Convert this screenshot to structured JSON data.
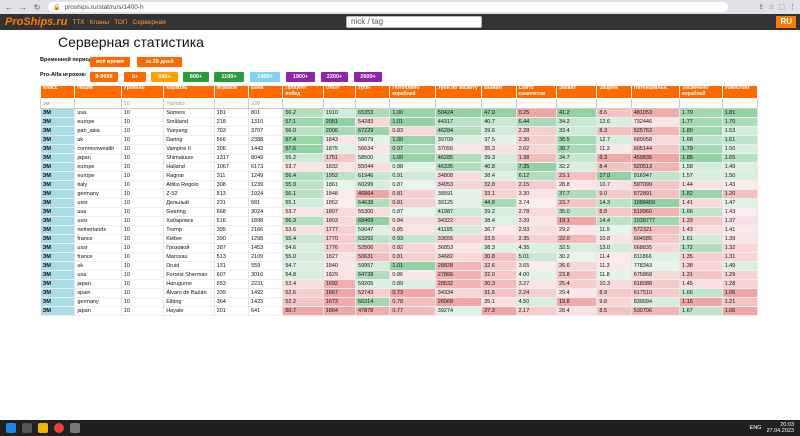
{
  "browser": {
    "url": "proships.ru/stat/ru/s/1400-h"
  },
  "header": {
    "logo": "ProShips.ru",
    "links": [
      "ТТХ",
      "Кланы",
      "ТОП",
      "Серверная"
    ],
    "search_placeholder": "nick / tag",
    "lang": "RU"
  },
  "page": {
    "title": "Серверная статистика",
    "period_label": "Временной период:",
    "period_opts": [
      "всё время",
      "за 28 дней"
    ],
    "pro_label": "Pro-Alfa игроков:",
    "pro_opts": [
      "0-9999",
      "0+",
      "500+",
      "800+",
      "1100+",
      "1400+",
      "1900+",
      "2200+",
      "2600+"
    ]
  },
  "colors": {
    "pill_bg": [
      "#ff6a00",
      "#ff6a00",
      "#ff6a00",
      "#ff9f00",
      "#2d9b3a",
      "#2d9b3a",
      "#7fd3ee",
      "#8e24aa",
      "#8e24aa",
      "#8e24aa"
    ]
  },
  "table": {
    "headers": [
      "Класс",
      "Нация",
      "Уровень",
      "Корабль",
      "Игроков",
      "Боев",
      "Процент побед",
      "Опыт",
      "Урон",
      "Потоплено кораблей",
      "Урон по засвету",
      "Выжил",
      "Сбито самолетов",
      "Захват",
      "Защита",
      "Потенциальн.",
      "Засвечено кораблей",
      "Убил/Убит"
    ],
    "filters": [
      "эм",
      "",
      "10",
      "Yamato",
      "",
      "≥20",
      "",
      "",
      "",
      "",
      "",
      "",
      "",
      "",
      "",
      "",
      "",
      ""
    ],
    "rows": [
      [
        "ЭМ",
        "usa",
        "10",
        "Somers",
        "181",
        "801",
        "56.2",
        "1910",
        "65353",
        "1.00",
        "50424",
        "47.0",
        "0.25",
        "41.2",
        "8.6",
        "481053",
        "1.79",
        "1.81"
      ],
      [
        "ЭМ",
        "europe",
        "10",
        "Småland",
        "218",
        "1310",
        "57.1",
        "2051",
        "54283",
        "1.01",
        "44317",
        "40.7",
        "6.44",
        "34.2",
        "12.6",
        "732446",
        "1.77",
        "1.70"
      ],
      [
        "ЭМ",
        "pan_asia",
        "10",
        "Yueyang",
        "703",
        "3707",
        "56.0",
        "2006",
        "67229",
        "0.83",
        "46284",
        "39.6",
        "2.28",
        "33.4",
        "8.3",
        "525763",
        "1.80",
        "1.53"
      ],
      [
        "ЭМ",
        "uk",
        "10",
        "Daring",
        "566",
        "2388",
        "57.4",
        "1843",
        "58079",
        "1.00",
        "39709",
        "37.5",
        "2.30",
        "38.5",
        "12.7",
        "689058",
        "1.68",
        "1.61"
      ],
      [
        "ЭМ",
        "commonwealth",
        "10",
        "Vampire II",
        "306",
        "1443",
        "57.6",
        "1875",
        "56634",
        "0.97",
        "37056",
        "35.3",
        "2.62",
        "38.7",
        "11.3",
        "605144",
        "1.79",
        "1.50"
      ],
      [
        "ЭМ",
        "japan",
        "10",
        "Shimakaze",
        "1317",
        "8049",
        "55.2",
        "1751",
        "58500",
        "1.00",
        "46285",
        "39.3",
        "1.38",
        "34.7",
        "6.3",
        "459835",
        "1.85",
        "1.65"
      ],
      [
        "ЭМ",
        "europe",
        "10",
        "Halland",
        "1067",
        "6173",
        "53.7",
        "1832",
        "55044",
        "0.88",
        "46335",
        "40.8",
        "7.35",
        "32.2",
        "8.4",
        "520513",
        "1.58",
        "1.49"
      ],
      [
        "ЭМ",
        "europe",
        "10",
        "Ragnar",
        "311",
        "1249",
        "56.4",
        "1952",
        "61946",
        "0.91",
        "34808",
        "38.4",
        "6.12",
        "23.1",
        "17.0",
        "916947",
        "1.57",
        "1.50"
      ],
      [
        "ЭМ",
        "italy",
        "10",
        "Attilio Regolo",
        "308",
        "1239",
        "55.9",
        "1861",
        "60299",
        "0.87",
        "34053",
        "32.8",
        "2.15",
        "28.8",
        "10.7",
        "597099",
        "1.44",
        "1.43"
      ],
      [
        "ЭМ",
        "germany",
        "10",
        "Z-52",
        "513",
        "1924",
        "56.1",
        "1848",
        "46864",
        "0.81",
        "38591",
        "33.1",
        "3.30",
        "37.7",
        "9.0",
        "572891",
        "1.82",
        "1.20"
      ],
      [
        "ЭМ",
        "ussr",
        "10",
        "Дельный",
        "231",
        "681",
        "55.1",
        "1852",
        "64638",
        "0.81",
        "39125",
        "44.8",
        "3.74",
        "23.7",
        "14.3",
        "1088459",
        "1.41",
        "1.47"
      ],
      [
        "ЭМ",
        "usa",
        "10",
        "Gearing",
        "668",
        "3024",
        "53.7",
        "1807",
        "55300",
        "0.87",
        "41987",
        "39.2",
        "2.78",
        "35.0",
        "8.8",
        "519960",
        "1.66",
        "1.43"
      ],
      [
        "ЭМ",
        "ussr",
        "10",
        "Хабаровск",
        "516",
        "1898",
        "56.3",
        "1803",
        "68469",
        "0.84",
        "34322",
        "38.4",
        "3.39",
        "19.1",
        "14.4",
        "1038777",
        "1.33",
        "1.37"
      ],
      [
        "ЭМ",
        "netherlands",
        "10",
        "Tromp",
        "395",
        "2166",
        "53.6",
        "1777",
        "59047",
        "0.85",
        "41195",
        "36.7",
        "2.93",
        "29.2",
        "11.9",
        "572321",
        "1.43",
        "1.41"
      ],
      [
        "ЭМ",
        "france",
        "10",
        "Kléber",
        "390",
        "1298",
        "55.4",
        "1770",
        "63292",
        "0.93",
        "33655",
        "33.5",
        "2.35",
        "22.0",
        "10.8",
        "604585",
        "1.61",
        "1.39"
      ],
      [
        "ЭМ",
        "ussr",
        "10",
        "Грозовой",
        "387",
        "1453",
        "54.6",
        "1776",
        "52506",
        "0.82",
        "36853",
        "38.3",
        "4.35",
        "32.5",
        "13.0",
        "668835",
        "1.72",
        "1.32"
      ],
      [
        "ЭМ",
        "france",
        "10",
        "Marceau",
        "513",
        "2109",
        "55.0",
        "1827",
        "50631",
        "0.81",
        "34682",
        "30.8",
        "5.01",
        "30.2",
        "11.4",
        "811866",
        "1.35",
        "1.31"
      ],
      [
        "ЭМ",
        "uk",
        "10",
        "Druid",
        "131",
        "559",
        "54.7",
        "1840",
        "59957",
        "1.01",
        "28828",
        "32.6",
        "3.65",
        "26.6",
        "11.3",
        "778343",
        "1.38",
        "1.49"
      ],
      [
        "ЭМ",
        "usa",
        "10",
        "Forrest Sherman",
        "607",
        "3016",
        "54.8",
        "1829",
        "64728",
        "0.86",
        "27866",
        "32.0",
        "4.00",
        "23.8",
        "11.8",
        "675868",
        "1.31",
        "1.29"
      ],
      [
        "ЭМ",
        "japan",
        "10",
        "Harugumo",
        "653",
        "2231",
        "53.4",
        "1692",
        "59205",
        "0.89",
        "28532",
        "30.3",
        "3.27",
        "25.4",
        "10.3",
        "618088",
        "1.45",
        "1.28"
      ],
      [
        "ЭМ",
        "spain",
        "10",
        "Álvaro de Bazán",
        "339",
        "1492",
        "52.6",
        "1667",
        "52743",
        "0.73",
        "34334",
        "31.5",
        "2.24",
        "29.4",
        "8.9",
        "617510",
        "1.66",
        "1.06"
      ],
      [
        "ЭМ",
        "germany",
        "10",
        "Elbing",
        "364",
        "1423",
        "52.2",
        "1673",
        "66314",
        "0.78",
        "26068",
        "35.1",
        "4.50",
        "19.8",
        "9.8",
        "839094",
        "1.16",
        "1.21"
      ],
      [
        "ЭМ",
        "japan",
        "10",
        "Hayate",
        "201",
        "641",
        "50.7",
        "1664",
        "47878",
        "0.77",
        "39274",
        "27.3",
        "2.17",
        "28.4",
        "8.5",
        "530706",
        "1.67",
        "1.06"
      ]
    ]
  },
  "taskbar": {
    "lang": "ENG",
    "time": "20:03",
    "date": "27.04.2023"
  }
}
